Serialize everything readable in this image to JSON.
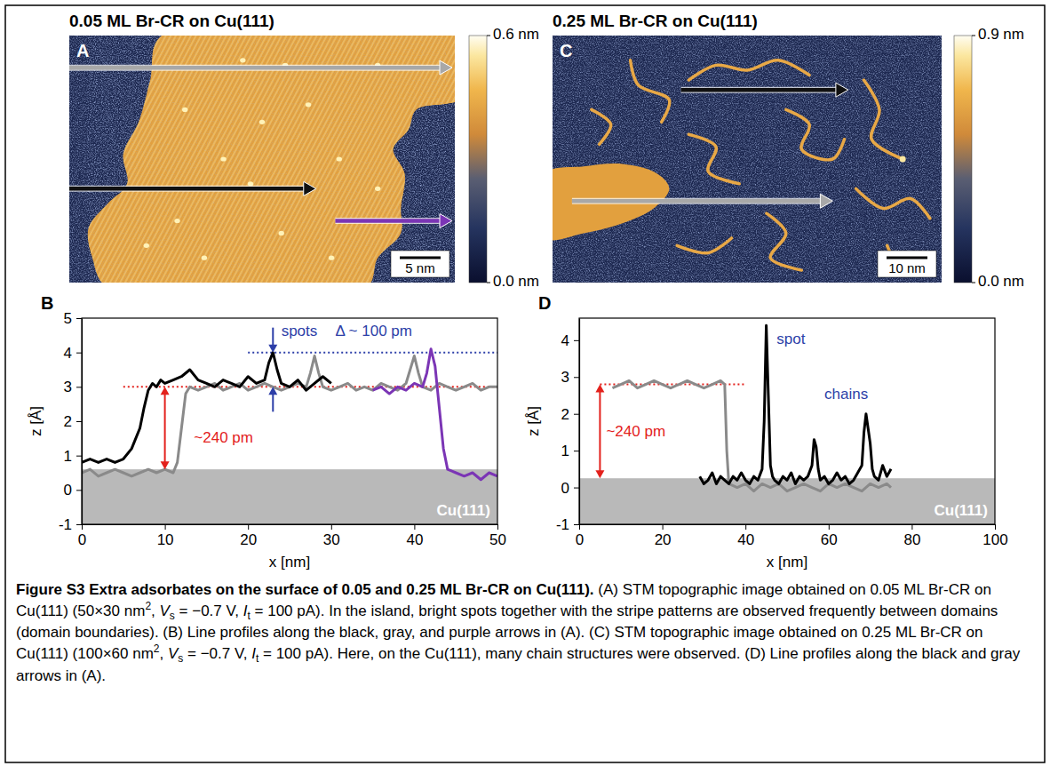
{
  "figure": {
    "panels": [
      {
        "letter": "A",
        "title": "0.05 ML Br-CR on Cu(111)",
        "colorbar": {
          "range": [
            0,
            0.6
          ],
          "ticks": [
            {
              "value": 0,
              "label": "0.0 nm"
            },
            {
              "value": 0.6,
              "label": "0.6 nm"
            }
          ]
        },
        "scale_bar": "5 nm"
      },
      {
        "letter": "C",
        "title": "0.25 ML Br-CR on Cu(111)",
        "colorbar": {
          "range": [
            0,
            0.9
          ],
          "ticks": [
            {
              "value": 0,
              "label": "0.0 nm"
            },
            {
              "value": 0.9,
              "label": "0.9 nm"
            }
          ]
        },
        "scale_bar": "10 nm"
      }
    ],
    "caption": [
      {
        "bold": "Figure S3 Extra adsorbates on the surface of 0.05 and 0.25 ML Br-CR on Cu(111)."
      },
      {
        "plain": " (A) STM topographic image obtained on 0.05 ML Br-CR on Cu(111) (50×30 nm"
      },
      {
        "sup": "2"
      },
      {
        "plain": ", "
      },
      {
        "italic": "V"
      },
      {
        "sub": "s"
      },
      {
        "plain": " = −0.7 V, "
      },
      {
        "italic": "I"
      },
      {
        "sub": "t"
      },
      {
        "plain": " = 100 pA). In the island, bright spots together with the stripe patterns are observed frequently between domains (domain boundaries). (B) Line profiles along the black, gray, and purple arrows in (A). (C) STM topographic image obtained on 0.25 ML Br-CR on Cu(111) (100×60 nm"
      },
      {
        "sup": "2"
      },
      {
        "plain": ", "
      },
      {
        "italic": "V"
      },
      {
        "sub": "s"
      },
      {
        "plain": " = −0.7 V, "
      },
      {
        "italic": "I"
      },
      {
        "sub": "t"
      },
      {
        "plain": " = 100 pA). Here, on the Cu(111), many chain structures were observed. (D) Line profiles along the black and gray arrows in (A)."
      }
    ]
  },
  "chart_data": [
    {
      "type": "line",
      "letter": "B",
      "x_label": "x [nm]",
      "y_label": "z [Å]",
      "xlim": [
        0,
        50
      ],
      "ylim": [
        -1,
        5
      ],
      "xticks": [
        0,
        10,
        20,
        30,
        40,
        50
      ],
      "yticks": [
        -1,
        0,
        1,
        2,
        3,
        4,
        5
      ],
      "series": [
        {
          "color": "#8a8a8a",
          "x": [
            0,
            1,
            2,
            3,
            4,
            5,
            6,
            7,
            8,
            9,
            10,
            11,
            11.5,
            12,
            12.5,
            13,
            14,
            15,
            16,
            17,
            18,
            19,
            20,
            21,
            22,
            23,
            24,
            25,
            26,
            27,
            27.5,
            28,
            28.5,
            29,
            30,
            31,
            32,
            33,
            34,
            35,
            36,
            37,
            38,
            39,
            39.5,
            40,
            40.5,
            41,
            42,
            43,
            44,
            45,
            46,
            47,
            48,
            49,
            50
          ],
          "values": [
            0.5,
            0.6,
            0.4,
            0.5,
            0.6,
            0.5,
            0.4,
            0.5,
            0.6,
            0.5,
            0.6,
            0.5,
            0.8,
            1.8,
            2.8,
            3.0,
            2.9,
            3.0,
            3.1,
            2.9,
            3.0,
            3.1,
            2.9,
            3.0,
            3.1,
            3.0,
            2.9,
            3.0,
            3.1,
            3.0,
            3.4,
            3.9,
            3.4,
            3.0,
            2.9,
            3.0,
            3.1,
            2.9,
            3.0,
            2.9,
            3.1,
            3.0,
            2.9,
            3.1,
            3.5,
            3.9,
            3.4,
            3.0,
            2.9,
            3.1,
            3.0,
            2.9,
            3.0,
            3.1,
            2.9,
            3.0,
            3.0
          ]
        },
        {
          "color": "#000000",
          "x": [
            0,
            1,
            2,
            3,
            4,
            5,
            6,
            7,
            7.5,
            8,
            8.5,
            9,
            9.5,
            10,
            11,
            12,
            13,
            14,
            15,
            16,
            17,
            18,
            19,
            20,
            21,
            22,
            22.5,
            23,
            23.5,
            24,
            25,
            26,
            27,
            28,
            29,
            30
          ],
          "values": [
            0.8,
            0.9,
            0.8,
            0.9,
            0.8,
            0.9,
            1.2,
            1.8,
            2.4,
            2.9,
            3.1,
            3.0,
            3.2,
            3.1,
            3.2,
            3.3,
            3.5,
            3.2,
            3.1,
            3.0,
            3.2,
            3.1,
            3.0,
            3.3,
            3.1,
            3.2,
            3.7,
            4.0,
            3.5,
            3.1,
            3.0,
            3.2,
            2.9,
            3.1,
            3.3,
            3.1
          ]
        },
        {
          "color": "#7b35b5",
          "x": [
            35,
            36,
            37,
            38,
            39,
            40,
            41,
            41.5,
            42,
            42.5,
            43,
            43.5,
            44,
            45,
            46,
            47,
            48,
            49,
            50
          ],
          "values": [
            2.9,
            3.0,
            2.8,
            3.0,
            2.9,
            3.1,
            3.0,
            3.4,
            4.1,
            3.6,
            2.4,
            1.2,
            0.6,
            0.5,
            0.4,
            0.5,
            0.3,
            0.5,
            0.4
          ]
        }
      ],
      "substrate": {
        "label": "Cu(111)",
        "top": 0.6
      },
      "reference_lines": [
        {
          "y": 3,
          "x_from": 5,
          "x_to": 50,
          "color": "#e3211c",
          "line_style": "dotted"
        },
        {
          "y": 4,
          "x_from": 20,
          "x_to": 50,
          "color": "#2d3fa8",
          "line_style": "dotted"
        }
      ],
      "double_arrows": [
        {
          "color": "#e3211c",
          "x": 10,
          "y_from": 0.6,
          "y_to": 3
        }
      ],
      "inward_arrows": [
        {
          "color": "#2d3fa8",
          "x": 23,
          "y_from": 3,
          "y_to": 4
        }
      ],
      "labels": [
        {
          "text": "~240 pm",
          "color": "#e3211c",
          "x": 13.5,
          "y": 1.5
        },
        {
          "text": "spots",
          "color": "#2d3fa8",
          "x": 24,
          "y": 4.6
        },
        {
          "text": "Δ ~ 100 pm",
          "color": "#2d3fa8",
          "x": 30.5,
          "y": 4.6
        }
      ]
    },
    {
      "type": "line",
      "letter": "D",
      "x_label": "x [nm]",
      "y_label": "z [Å]",
      "xlim": [
        0,
        100
      ],
      "ylim": [
        -1,
        4.6
      ],
      "xticks": [
        0,
        20,
        40,
        60,
        80,
        100
      ],
      "yticks": [
        -1,
        0,
        1,
        2,
        3,
        4
      ],
      "series": [
        {
          "color": "#8a8a8a",
          "x": [
            8,
            10,
            12,
            14,
            16,
            18,
            20,
            22,
            24,
            26,
            28,
            30,
            32,
            34,
            35,
            35.5,
            36,
            38,
            40,
            42,
            44,
            46,
            48,
            50,
            52,
            54,
            56,
            58,
            60,
            62,
            64,
            66,
            68,
            70,
            72,
            74,
            75
          ],
          "values": [
            2.7,
            2.8,
            2.9,
            2.7,
            2.8,
            2.9,
            2.8,
            2.7,
            2.8,
            2.9,
            2.8,
            2.7,
            2.8,
            2.9,
            2.8,
            1.0,
            0.1,
            0.0,
            0.1,
            -0.1,
            0.1,
            0.0,
            0.1,
            -0.1,
            0.0,
            0.1,
            0.0,
            -0.1,
            0.1,
            0.0,
            0.1,
            0.0,
            -0.1,
            0.1,
            0.0,
            0.1,
            0.0
          ]
        },
        {
          "color": "#000000",
          "x": [
            29,
            30,
            31,
            32,
            33,
            34,
            35,
            36,
            37,
            38,
            39,
            40,
            41,
            42,
            43,
            44,
            44.5,
            45,
            45.5,
            46,
            46.5,
            47,
            48,
            49,
            50,
            51,
            52,
            53,
            54,
            55,
            56,
            56.5,
            57,
            57.5,
            58,
            59,
            60,
            61,
            62,
            63,
            64,
            65,
            66,
            67,
            68,
            68.5,
            69,
            69.5,
            70,
            70.5,
            71,
            72,
            73,
            74,
            75
          ],
          "values": [
            0.3,
            0.1,
            0.2,
            0.4,
            0.1,
            0.3,
            0.2,
            0.1,
            0.3,
            0.2,
            0.4,
            0.2,
            0.1,
            0.3,
            0.2,
            0.5,
            1.8,
            4.4,
            2.5,
            0.6,
            0.3,
            0.2,
            0.1,
            0.3,
            0.2,
            0.4,
            0.1,
            0.3,
            0.2,
            0.3,
            0.6,
            1.3,
            1.1,
            0.5,
            0.2,
            0.3,
            0.1,
            0.2,
            0.4,
            0.2,
            0.3,
            0.1,
            0.2,
            0.4,
            0.6,
            1.5,
            2.0,
            1.6,
            1.2,
            0.5,
            0.3,
            0.2,
            0.6,
            0.3,
            0.5
          ]
        }
      ],
      "substrate": {
        "label": "Cu(111)",
        "top": 0.25
      },
      "reference_lines": [
        {
          "y": 2.8,
          "x_from": 5,
          "x_to": 40,
          "color": "#e3211c",
          "line_style": "dotted"
        }
      ],
      "double_arrows": [
        {
          "color": "#e3211c",
          "x": 5,
          "y_from": 0.25,
          "y_to": 2.8
        }
      ],
      "labels": [
        {
          "text": "~240 pm",
          "color": "#e3211c",
          "x": 6.5,
          "y": 1.5
        },
        {
          "text": "spot",
          "color": "#2d3fa8",
          "x": 47.5,
          "y": 4.0
        },
        {
          "text": "chains",
          "color": "#2d3fa8",
          "x": 59,
          "y": 2.5
        }
      ]
    }
  ]
}
